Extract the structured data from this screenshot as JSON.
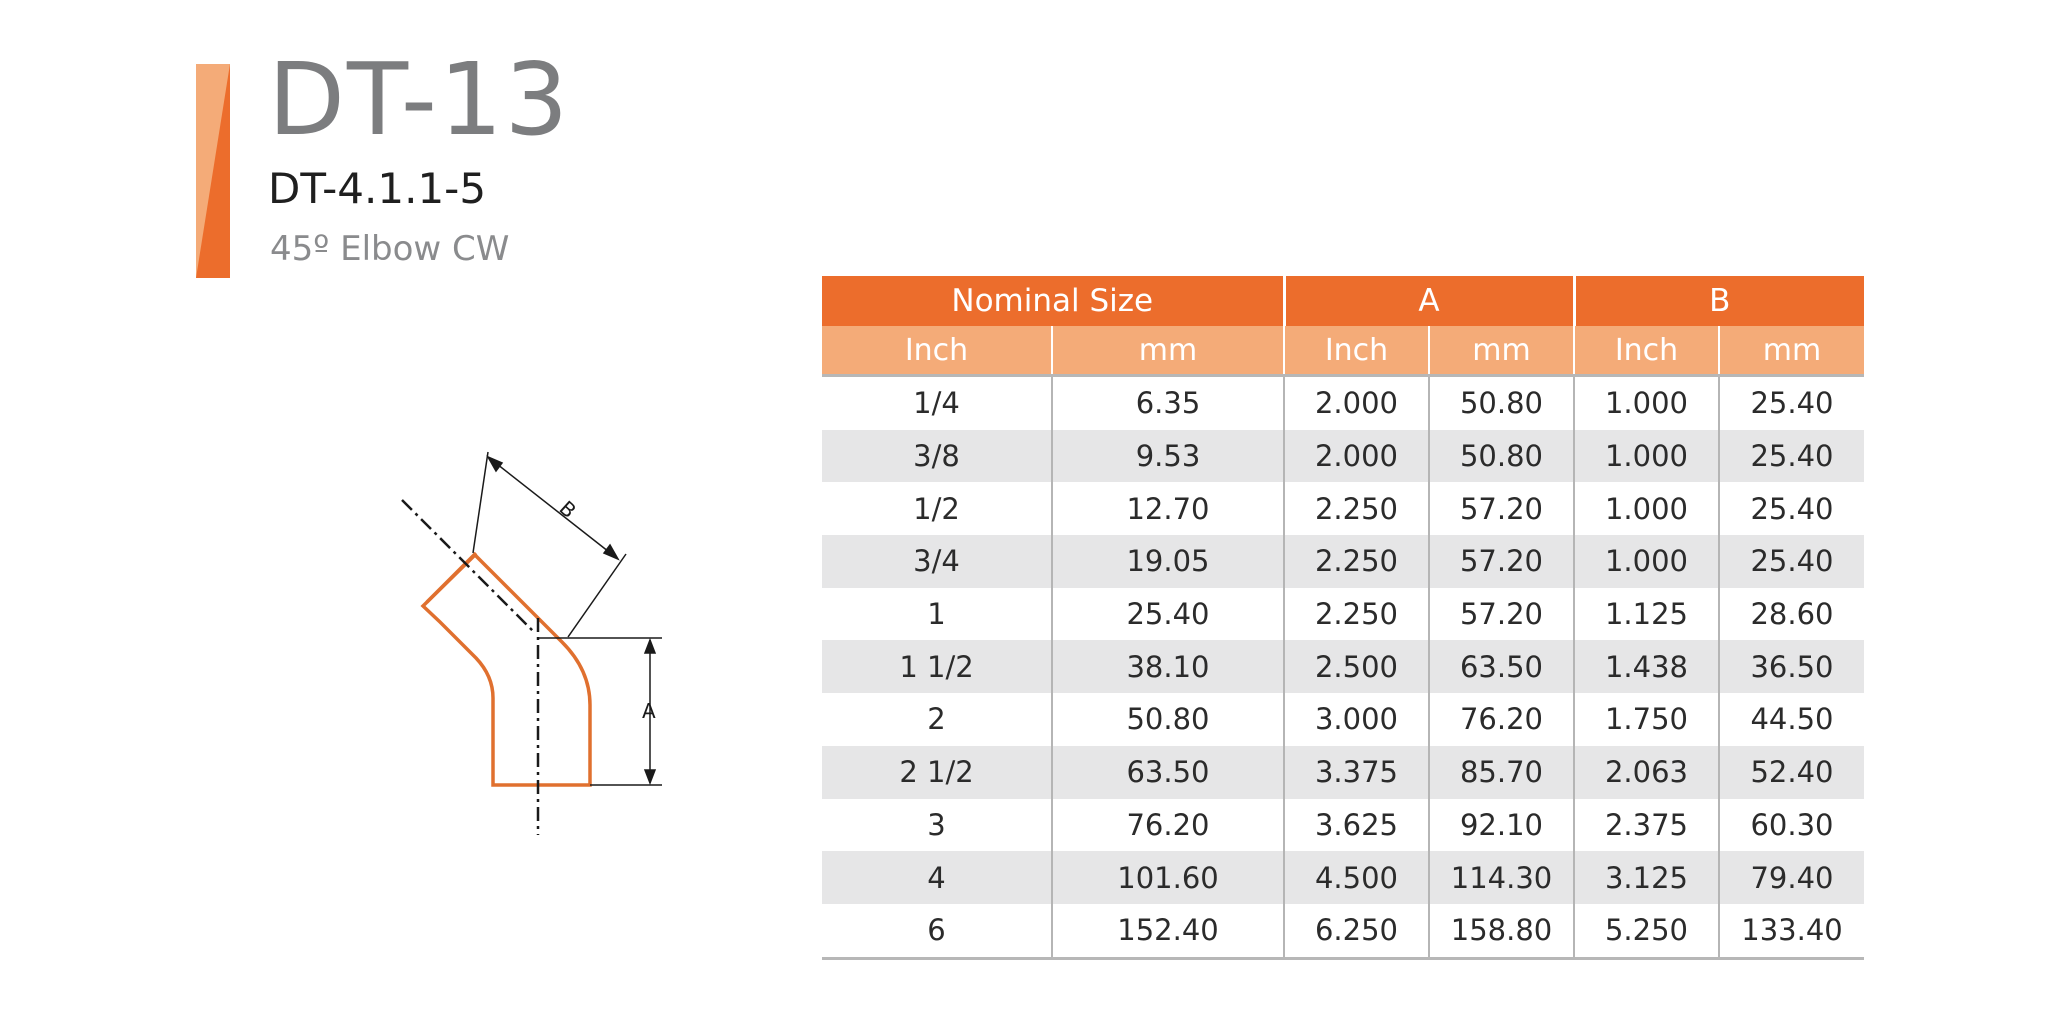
{
  "header": {
    "code": "DT-13",
    "subcode": "DT-4.1.1-5",
    "product_name": "45º Elbow CW"
  },
  "drawing": {
    "dimension_a": "A",
    "dimension_b": "B"
  },
  "colors": {
    "accent": "#ec6d2c",
    "accent_light": "#f4ab78",
    "row_shade": "#e6e6e7",
    "pipe_outline": "#e0702f"
  },
  "table": {
    "groups": [
      "Nominal Size",
      "A",
      "B"
    ],
    "units": [
      "Inch",
      "mm",
      "Inch",
      "mm",
      "Inch",
      "mm"
    ],
    "rows": [
      [
        "1/4",
        "6.35",
        "2.000",
        "50.80",
        "1.000",
        "25.40"
      ],
      [
        "3/8",
        "9.53",
        "2.000",
        "50.80",
        "1.000",
        "25.40"
      ],
      [
        "1/2",
        "12.70",
        "2.250",
        "57.20",
        "1.000",
        "25.40"
      ],
      [
        "3/4",
        "19.05",
        "2.250",
        "57.20",
        "1.000",
        "25.40"
      ],
      [
        "1",
        "25.40",
        "2.250",
        "57.20",
        "1.125",
        "28.60"
      ],
      [
        "1 1/2",
        "38.10",
        "2.500",
        "63.50",
        "1.438",
        "36.50"
      ],
      [
        "2",
        "50.80",
        "3.000",
        "76.20",
        "1.750",
        "44.50"
      ],
      [
        "2 1/2",
        "63.50",
        "3.375",
        "85.70",
        "2.063",
        "52.40"
      ],
      [
        "3",
        "76.20",
        "3.625",
        "92.10",
        "2.375",
        "60.30"
      ],
      [
        "4",
        "101.60",
        "4.500",
        "114.30",
        "3.125",
        "79.40"
      ],
      [
        "6",
        "152.40",
        "6.250",
        "158.80",
        "5.250",
        "133.40"
      ]
    ]
  }
}
